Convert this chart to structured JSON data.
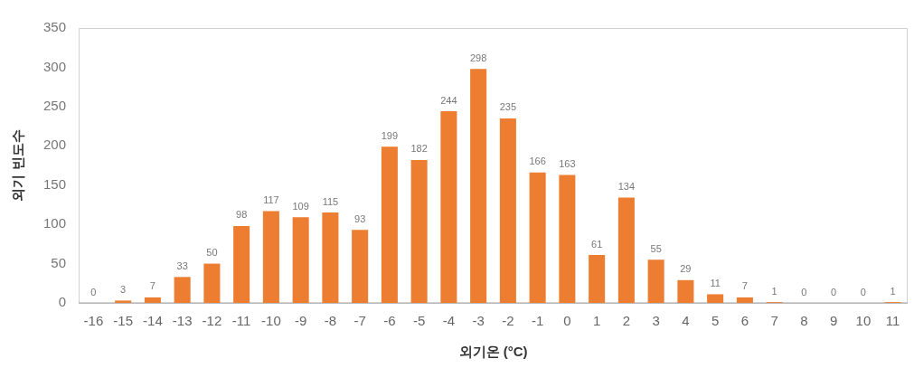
{
  "chart_data": {
    "type": "bar",
    "xlabel": "외기온 (°C)",
    "ylabel": "외기 빈도수",
    "categories": [
      "-16",
      "-15",
      "-14",
      "-13",
      "-12",
      "-11",
      "-10",
      "-9",
      "-8",
      "-7",
      "-6",
      "-5",
      "-4",
      "-3",
      "-2",
      "-1",
      "0",
      "1",
      "2",
      "3",
      "4",
      "5",
      "6",
      "7",
      "8",
      "9",
      "10",
      "11"
    ],
    "values": [
      0,
      3,
      7,
      33,
      50,
      98,
      117,
      109,
      115,
      93,
      199,
      182,
      244,
      298,
      235,
      166,
      163,
      61,
      134,
      55,
      29,
      11,
      7,
      1,
      0,
      0,
      0,
      1
    ],
    "color": "#ed7d31",
    "ylim": [
      0,
      350
    ],
    "yticks": [
      0,
      50,
      100,
      150,
      200,
      250,
      300,
      350
    ],
    "data_labels": true,
    "grid": false,
    "legend": false
  }
}
